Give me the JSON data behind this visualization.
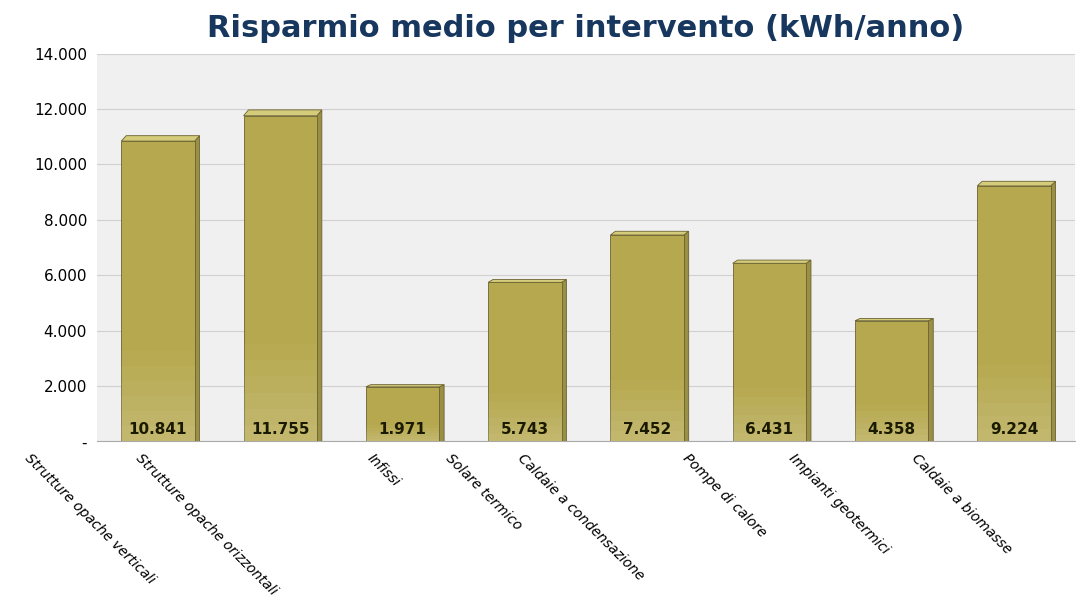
{
  "title": "Risparmio medio per intervento (kWh/anno)",
  "categories": [
    "Strutture opache verticali",
    "Strutture opache orizzontali",
    "Infissi",
    "Solare termico",
    "Caldaie a condensazione",
    "Pompe di calore",
    "Impianti geotermici",
    "Caldaie a biomasse"
  ],
  "values": [
    10841,
    11755,
    1971,
    5743,
    7452,
    6431,
    4358,
    9224
  ],
  "bar_color_face": "#b5a84e",
  "bar_color_light": "#d4cc7a",
  "bar_color_dark": "#807640",
  "bar_color_edge": "#6b6230",
  "bar_color_side": "#9a9045",
  "label_color": "#1a1a00",
  "ylim": [
    0,
    14000
  ],
  "yticks": [
    0,
    2000,
    4000,
    6000,
    8000,
    10000,
    12000,
    14000
  ],
  "ytick_labels": [
    "-",
    "2.000",
    "4.000",
    "6.000",
    "8.000",
    "10.000",
    "12.000",
    "14.000"
  ],
  "background_color": "#ffffff",
  "plot_bg_color": "#f0f0f0",
  "grid_color": "#d0d0d0",
  "title_color": "#17375e",
  "title_fontsize": 22,
  "label_fontsize": 10,
  "value_fontsize": 11,
  "tick_fontsize": 11,
  "ytick_fontsize": 11,
  "figsize": [
    10.89,
    6.12
  ],
  "dpi": 100
}
